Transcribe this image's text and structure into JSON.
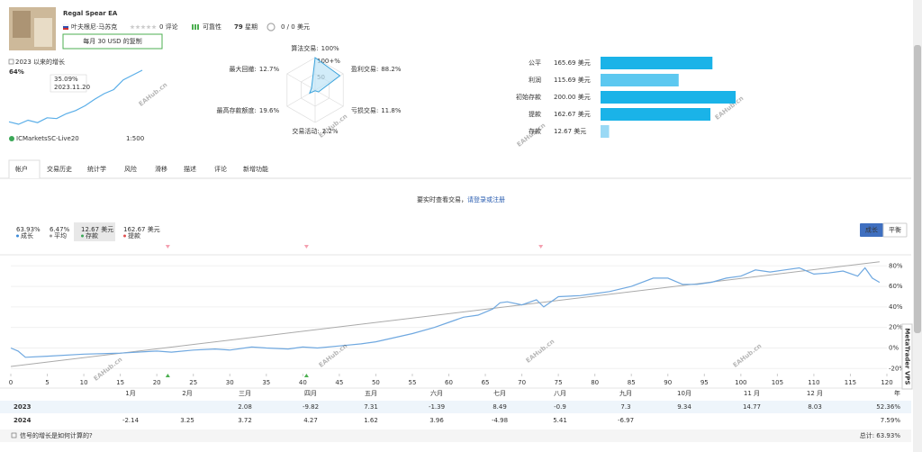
{
  "header": {
    "title": "Regal Spear EA",
    "author": "叶夫根尼·马苏克",
    "reviews": "0 评论",
    "reliability": "可靠性",
    "weeks": 79,
    "weeks_label": "星期",
    "subscribers": "0 / 0 美元",
    "copy_button": "每月 30 USD 的复制"
  },
  "growth_summary": {
    "label": "2023 以来的增长",
    "value": "64%",
    "sparkline": [
      0,
      -3,
      2,
      -1,
      5,
      4,
      10,
      14,
      20,
      28,
      35,
      40,
      52,
      58,
      64
    ],
    "tooltip_value": "35.09%",
    "tooltip_date": "2023.11.20",
    "broker": "ICMarketsSC-Live20",
    "leverage": "1:500"
  },
  "radar": {
    "ticks": [
      {
        "value": 100,
        "label": "100+%"
      },
      50
    ],
    "items": [
      {
        "name": "算法交易:",
        "label": "100%",
        "value": 100
      },
      {
        "name": "盈利交易:",
        "label": "88.2%",
        "value": 88.2
      },
      {
        "name": "亏损交易:",
        "label": "11.8%",
        "value": 11.8
      },
      {
        "name": "交易活动:",
        "label": "2.2%",
        "value": 2.2
      },
      {
        "name": "最高存款额度:",
        "label": "19.6%",
        "value": 19.6
      },
      {
        "name": "最大回撤:",
        "label": "12.7%",
        "value": 12.7
      }
    ]
  },
  "balance_bars": [
    {
      "name": "公平",
      "value": 165.69,
      "label": "165.69 美元",
      "color": "#1ab3e8"
    },
    {
      "name": "利润",
      "value": 115.69,
      "label": "115.69 美元",
      "color": "#5cc8f0"
    },
    {
      "name": "初始存款",
      "value": 200.0,
      "label": "200.00 美元",
      "color": "#1ab3e8"
    },
    {
      "name": "提款",
      "value": 162.67,
      "label": "162.67 美元",
      "color": "#1ab3e8"
    },
    {
      "name": "存款",
      "value": 12.67,
      "label": "12.67 美元",
      "color": "#9ad9f5"
    }
  ],
  "tabs": [
    "帐户",
    "交易历史",
    "统计学",
    "风险",
    "滑移",
    "描述",
    "评论",
    "新增功能"
  ],
  "notice": {
    "text": "要实时查看交易，",
    "link": "请登录或注册"
  },
  "stats": [
    {
      "value": "63.93%",
      "label": "成长",
      "color": "#3b8ad9"
    },
    {
      "value": "6.47%",
      "label": "平均",
      "color": "#999999"
    },
    {
      "value": "12.67 美元",
      "label": "存款",
      "color": "#3aa757"
    },
    {
      "value": "162.67 美元",
      "label": "提款",
      "color": "#e05050"
    }
  ],
  "chart_buttons": [
    "成长",
    "平衡"
  ],
  "chart_data": {
    "type": "line",
    "x": [
      0,
      1,
      2,
      5,
      10,
      15,
      20,
      22,
      25,
      28,
      30,
      33,
      35,
      38,
      40,
      42,
      45,
      48,
      50,
      55,
      58,
      60,
      62,
      64,
      66,
      67,
      68,
      70,
      72,
      73,
      75,
      78,
      80,
      82,
      85,
      88,
      90,
      92,
      94,
      96,
      98,
      100,
      102,
      104,
      106,
      108,
      110,
      112,
      114,
      116,
      117,
      118,
      119
    ],
    "series": [
      {
        "color": "#6fa8e0",
        "values": [
          0,
          -3,
          -9,
          -8,
          -6,
          -5,
          -3,
          -4,
          -2,
          -1,
          -2,
          1,
          0,
          -1,
          1,
          0,
          2,
          4,
          6,
          14,
          20,
          25,
          30,
          32,
          38,
          44,
          45,
          42,
          47,
          40,
          50,
          51,
          53,
          55,
          60,
          68,
          68,
          62,
          62,
          64,
          68,
          70,
          76,
          74,
          76,
          78,
          72,
          73,
          75,
          70,
          78,
          68,
          63.93
        ]
      }
    ],
    "trend_line": {
      "color": "#aaaaaa",
      "x": [
        0,
        119
      ],
      "values": [
        -18,
        84
      ]
    },
    "deposits_x": [
      21.5,
      40.5
    ],
    "withdrawals_x": [
      21.5,
      40.5,
      72.6
    ],
    "xlim": [
      0,
      120
    ],
    "xticks": [
      0,
      5,
      10,
      15,
      20,
      25,
      30,
      35,
      40,
      45,
      50,
      55,
      60,
      65,
      70,
      75,
      80,
      85,
      90,
      95,
      100,
      105,
      110,
      115,
      120
    ],
    "ylim": [
      -25,
      89
    ],
    "yticks": [
      {
        "value": -20,
        "label": "-20%"
      },
      {
        "value": 0,
        "label": "0%"
      },
      {
        "value": 20,
        "label": "20%"
      },
      {
        "value": 40,
        "label": "40%"
      },
      {
        "value": 60,
        "label": "60%"
      },
      {
        "value": 80,
        "label": "80%"
      }
    ],
    "grid": true
  },
  "monthly_table": {
    "columns": [
      "1月",
      "2月",
      "三月",
      "四月",
      "五月",
      "六月",
      "七月",
      "八月",
      "九月",
      "10月",
      "11 月",
      "12 月",
      "年"
    ],
    "rows": [
      {
        "year": "2023",
        "values": [
          null,
          null,
          "2.08",
          "-9.82",
          "7.31",
          "-1.39",
          "8.49",
          "-0.9",
          "7.3",
          "9.34",
          "14.77",
          "8.03",
          "52.36%"
        ]
      },
      {
        "year": "2024",
        "values": [
          "-2.14",
          "3.25",
          "3.72",
          "4.27",
          "1.62",
          "3.96",
          "-4.98",
          "5.41",
          "-6.97",
          null,
          null,
          null,
          "7.59%"
        ]
      }
    ]
  },
  "footer": {
    "link": "信号的增长是如何计算的?",
    "total": "总计: 63.93%"
  },
  "side_tab": "MetaTrader VPS",
  "watermark": "EAHub.cn"
}
